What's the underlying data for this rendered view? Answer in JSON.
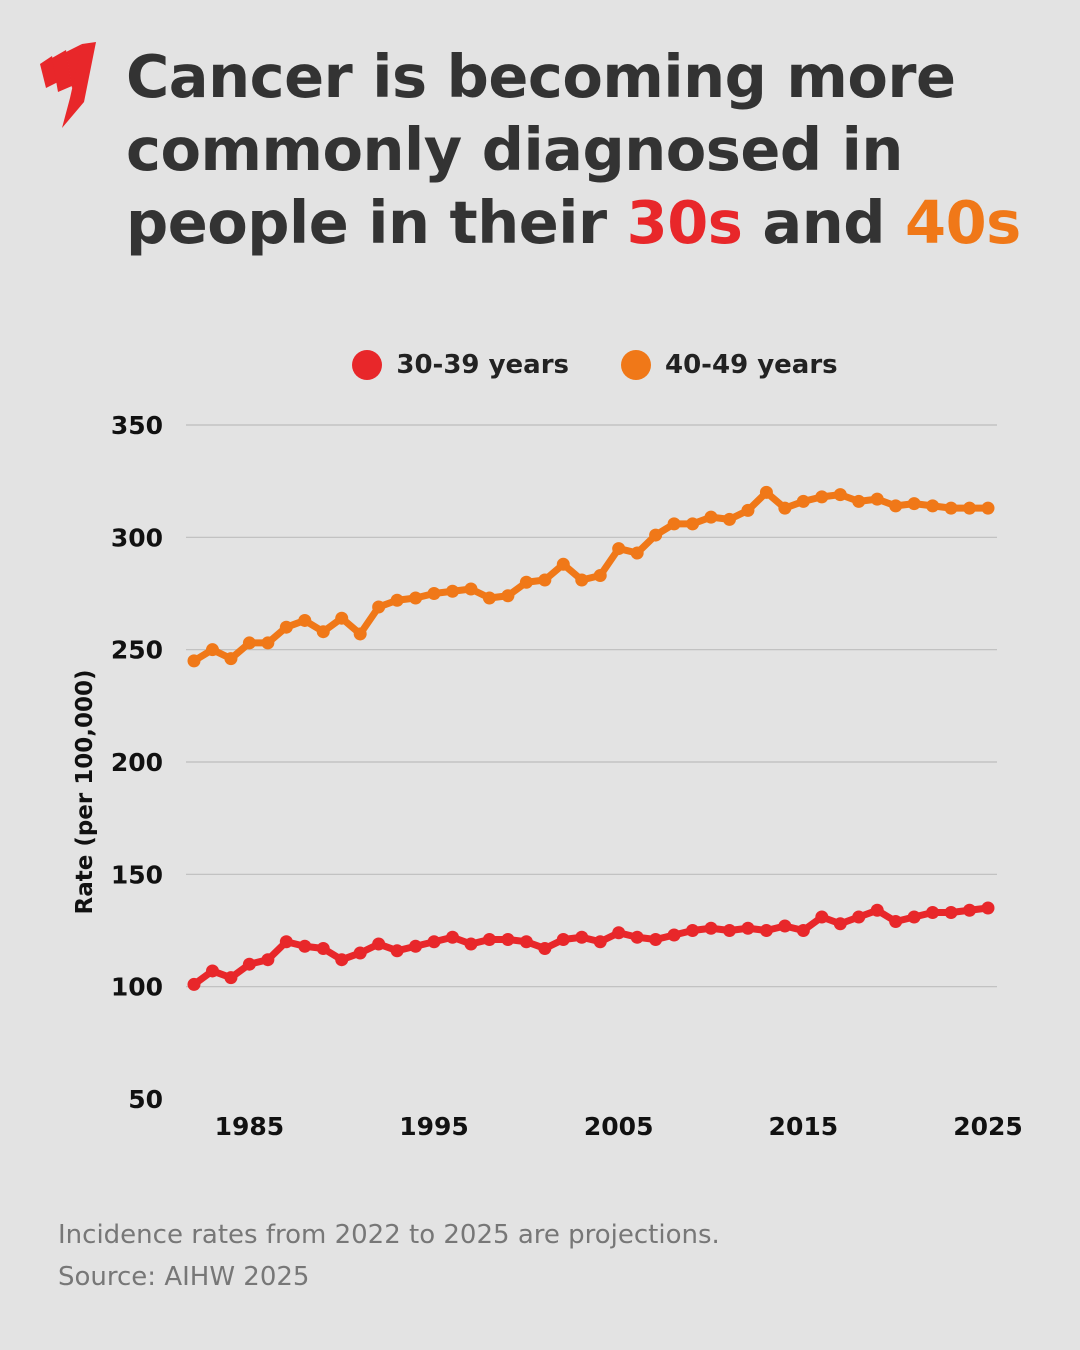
{
  "title": {
    "prefix": "Cancer is becoming more commonly diagnosed in people in their ",
    "hl1": "30s",
    "mid": " and ",
    "hl2": "40s"
  },
  "colors": {
    "red": "#e8272a",
    "orange": "#f07818",
    "text": "#333333",
    "background": "#e3e3e3"
  },
  "logo": "sbs-logo",
  "chart_data": {
    "type": "line",
    "title": "Cancer is becoming more commonly diagnosed in people in their 30s and 40s",
    "xlabel": "",
    "ylabel": "Rate (per 100,000)",
    "ylim": [
      50,
      350
    ],
    "xlim": [
      1982,
      2025
    ],
    "yticks": [
      50,
      100,
      150,
      200,
      250,
      300,
      350
    ],
    "xticks": [
      1985,
      1995,
      2005,
      2015,
      2025
    ],
    "grid": true,
    "legend_placement": "top",
    "x": [
      1982,
      1983,
      1984,
      1985,
      1986,
      1987,
      1988,
      1989,
      1990,
      1991,
      1992,
      1993,
      1994,
      1995,
      1996,
      1997,
      1998,
      1999,
      2000,
      2001,
      2002,
      2003,
      2004,
      2005,
      2006,
      2007,
      2008,
      2009,
      2010,
      2011,
      2012,
      2013,
      2014,
      2015,
      2016,
      2017,
      2018,
      2019,
      2020,
      2021,
      2022,
      2023,
      2024,
      2025
    ],
    "series": [
      {
        "name": "30-39 years",
        "color": "#e8272a",
        "values": [
          101,
          107,
          104,
          110,
          112,
          120,
          118,
          117,
          112,
          115,
          119,
          116,
          118,
          120,
          122,
          119,
          121,
          121,
          120,
          117,
          121,
          122,
          120,
          124,
          122,
          121,
          123,
          125,
          126,
          125,
          126,
          125,
          127,
          125,
          131,
          128,
          131,
          134,
          129,
          131,
          133,
          133,
          134,
          135
        ]
      },
      {
        "name": "40-49 years",
        "color": "#f07818",
        "values": [
          245,
          250,
          246,
          253,
          253,
          260,
          263,
          258,
          264,
          257,
          269,
          272,
          273,
          275,
          276,
          277,
          273,
          274,
          280,
          281,
          288,
          281,
          283,
          295,
          293,
          301,
          306,
          306,
          309,
          308,
          312,
          320,
          313,
          316,
          318,
          319,
          316,
          317,
          314,
          315,
          314,
          313,
          313,
          313
        ]
      }
    ]
  },
  "footer": {
    "note": "Incidence rates from 2022 to 2025 are projections.",
    "source": "Source: AIHW 2025"
  }
}
